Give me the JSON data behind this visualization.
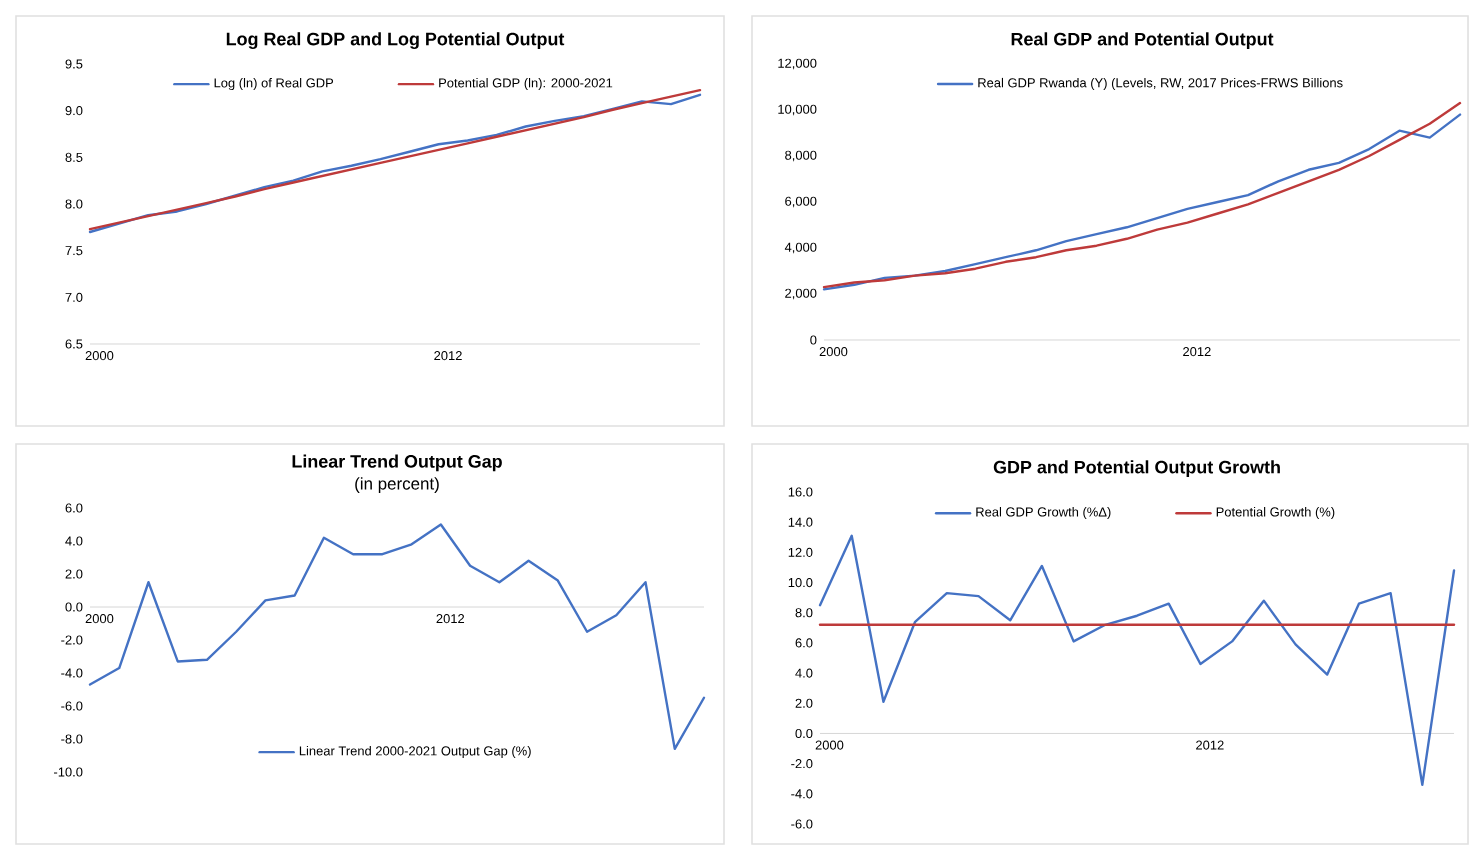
{
  "chart_data": [
    {
      "type": "line",
      "title": "Log Real GDP and Log Potential Output",
      "categories": [
        "2000",
        null,
        null,
        null,
        null,
        null,
        null,
        null,
        null,
        null,
        null,
        null,
        "2012",
        null,
        null,
        null,
        null,
        null,
        null,
        null,
        null,
        null
      ],
      "series": [
        {
          "name": "Log (ln) of Real GDP",
          "color": "#4472c4",
          "values": [
            7.7,
            7.79,
            7.88,
            7.92,
            8.0,
            8.09,
            8.18,
            8.25,
            8.35,
            8.41,
            8.48,
            8.56,
            8.64,
            8.68,
            8.74,
            8.83,
            8.89,
            8.94,
            9.02,
            9.1,
            9.07,
            9.17
          ]
        },
        {
          "name": "Potential GDP (ln): 2000-2021",
          "color": "#be3a3a",
          "values": [
            7.73,
            7.8,
            7.87,
            7.94,
            8.01,
            8.08,
            8.16,
            8.23,
            8.3,
            8.37,
            8.44,
            8.51,
            8.58,
            8.65,
            8.72,
            8.79,
            8.86,
            8.93,
            9.01,
            9.08,
            9.15,
            9.22
          ]
        }
      ],
      "ylim": [
        6.5,
        9.5
      ],
      "yticks": [
        6.5,
        {
          "value": 7,
          "label": "7.0"
        },
        7.5,
        {
          "value": 8,
          "label": "8.0"
        },
        8.5,
        {
          "value": 9,
          "label": "9.0"
        },
        9.5
      ],
      "legend": "top"
    },
    {
      "type": "line",
      "title": "Real GDP and Potential Output",
      "categories": [
        "2000",
        null,
        null,
        null,
        null,
        null,
        null,
        null,
        null,
        null,
        null,
        null,
        "2012",
        null,
        null,
        null,
        null,
        null,
        null,
        null,
        null,
        null
      ],
      "series": [
        {
          "name": "Real GDP Rwanda (Y) (Levels, RW, 2017 Prices-FRWS Billions",
          "color": "#4472c4",
          "values": [
            2200,
            2400,
            2700,
            2800,
            3000,
            3300,
            3600,
            3900,
            4300,
            4600,
            4900,
            5300,
            5700,
            6000,
            6300,
            6900,
            7400,
            7700,
            8300,
            9100,
            8800,
            9800
          ]
        },
        {
          "color": "#be3a3a",
          "values": [
            2300,
            2500,
            2600,
            2800,
            2900,
            3100,
            3400,
            3600,
            3900,
            4100,
            4400,
            4800,
            5100,
            5500,
            5900,
            6400,
            6900,
            7400,
            8000,
            8700,
            9400,
            10300
          ]
        }
      ],
      "ylim": [
        0,
        12000
      ],
      "yticks": [
        0,
        {
          "value": 2000,
          "label": "2,000"
        },
        {
          "value": 4000,
          "label": "4,000"
        },
        {
          "value": 6000,
          "label": "6,000"
        },
        {
          "value": 8000,
          "label": "8,000"
        },
        {
          "value": 10000,
          "label": "10,000"
        },
        {
          "value": 12000,
          "label": "12,000"
        }
      ],
      "legend": "top"
    },
    {
      "type": "line",
      "title": "Linear Trend Output Gap",
      "subtitle": "(in percent)",
      "categories": [
        "2000",
        null,
        null,
        null,
        null,
        null,
        null,
        null,
        null,
        null,
        null,
        null,
        "2012",
        null,
        null,
        null,
        null,
        null,
        null,
        null,
        null,
        null
      ],
      "series": [
        {
          "name": "Linear Trend 2000-2021 Output Gap (%)",
          "color": "#4472c4",
          "values": [
            -4.7,
            -3.7,
            1.5,
            -3.3,
            -3.2,
            -1.5,
            0.4,
            0.7,
            4.2,
            3.2,
            3.2,
            3.8,
            5.0,
            2.5,
            1.5,
            2.8,
            1.6,
            -1.5,
            -0.5,
            1.5,
            -8.6,
            -5.5
          ]
        }
      ],
      "ylim": [
        -10,
        6
      ],
      "yticks": [
        {
          "value": -10,
          "label": "-10.0"
        },
        {
          "value": -8,
          "label": "-8.0"
        },
        {
          "value": -6,
          "label": "-6.0"
        },
        {
          "value": -4,
          "label": "-4.0"
        },
        {
          "value": -2,
          "label": "-2.0"
        },
        {
          "value": 0,
          "label": "0.0"
        },
        {
          "value": 2,
          "label": "2.0"
        },
        {
          "value": 4,
          "label": "4.0"
        },
        {
          "value": 6,
          "label": "6.0"
        }
      ],
      "legend": "bottom"
    },
    {
      "type": "line",
      "title": "GDP and Potential Output Growth",
      "categories": [
        "2000",
        null,
        null,
        null,
        null,
        null,
        null,
        null,
        null,
        null,
        null,
        null,
        "2012",
        null,
        null,
        null,
        null,
        null,
        null,
        null,
        null
      ],
      "series": [
        {
          "name": "Real GDP Growth (%Δ)",
          "color": "#4472c4",
          "values": [
            8.5,
            13.1,
            2.1,
            7.4,
            9.3,
            9.1,
            7.5,
            11.1,
            6.1,
            7.2,
            7.8,
            8.6,
            4.6,
            6.1,
            8.8,
            5.9,
            3.9,
            8.6,
            9.3,
            -3.4,
            10.8
          ]
        },
        {
          "name": "Potential Growth (%)",
          "color": "#be3a3a",
          "values": [
            7.2,
            7.2,
            7.2,
            7.2,
            7.2,
            7.2,
            7.2,
            7.2,
            7.2,
            7.2,
            7.2,
            7.2,
            7.2,
            7.2,
            7.2,
            7.2,
            7.2,
            7.2,
            7.2,
            7.2,
            7.2
          ]
        }
      ],
      "ylim": [
        -6,
        16
      ],
      "yticks": [
        {
          "value": -6,
          "label": "-6.0"
        },
        {
          "value": -4,
          "label": "-4.0"
        },
        {
          "value": -2,
          "label": "-2.0"
        },
        {
          "value": 0,
          "label": "0.0"
        },
        {
          "value": 2,
          "label": "2.0"
        },
        {
          "value": 4,
          "label": "4.0"
        },
        {
          "value": 6,
          "label": "6.0"
        },
        {
          "value": 8,
          "label": "8.0"
        },
        {
          "value": 10,
          "label": "10.0"
        },
        {
          "value": 12,
          "label": "12.0"
        },
        {
          "value": 14,
          "label": "14.0"
        },
        {
          "value": 16,
          "label": "16.0"
        }
      ],
      "legend": "top"
    }
  ]
}
